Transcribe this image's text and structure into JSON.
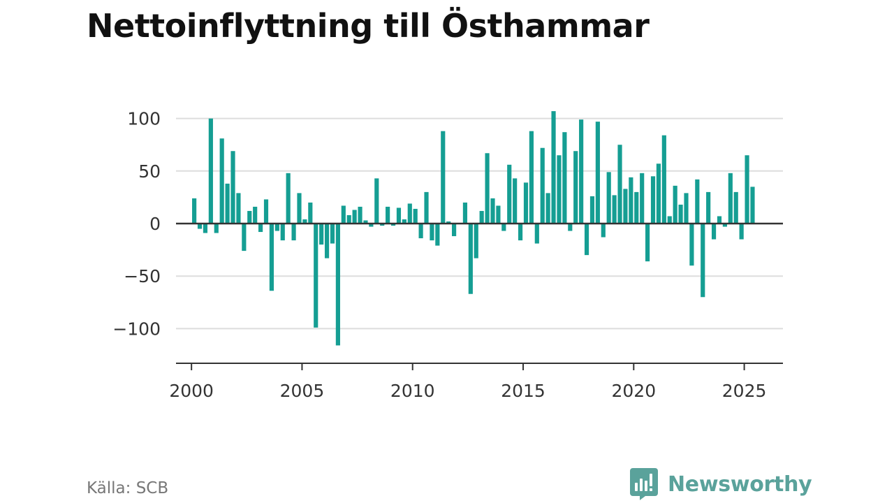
{
  "title": "Nettoinflyttning till Östhammar",
  "source": "Källa: SCB",
  "brand": {
    "name": "Newsworthy",
    "color": "#5aa29b",
    "icon": "bar-chart-speech-bubble-icon"
  },
  "chart_data": {
    "type": "bar",
    "bar_color": "#159e93",
    "xlim": [
      1999.3,
      2026.75
    ],
    "ylim": [
      -133,
      133
    ],
    "x_ticks": [
      2000,
      2005,
      2010,
      2015,
      2020,
      2025
    ],
    "x_tick_labels": [
      "2000",
      "2005",
      "2010",
      "2015",
      "2020",
      "2025"
    ],
    "y_ticks": [
      100,
      50,
      0,
      -50,
      -100
    ],
    "y_tick_labels": [
      "100",
      "50",
      "0",
      "−50",
      "−100"
    ],
    "grid": "horizontal",
    "legend": "none",
    "x": [
      2000.125,
      2000.375,
      2000.625,
      2000.875,
      2001.125,
      2001.375,
      2001.625,
      2001.875,
      2002.125,
      2002.375,
      2002.625,
      2002.875,
      2003.125,
      2003.375,
      2003.625,
      2003.875,
      2004.125,
      2004.375,
      2004.625,
      2004.875,
      2005.125,
      2005.375,
      2005.625,
      2005.875,
      2006.125,
      2006.375,
      2006.625,
      2006.875,
      2007.125,
      2007.375,
      2007.625,
      2007.875,
      2008.125,
      2008.375,
      2008.625,
      2008.875,
      2009.125,
      2009.375,
      2009.625,
      2009.875,
      2010.125,
      2010.375,
      2010.625,
      2010.875,
      2011.125,
      2011.375,
      2011.625,
      2011.875,
      2012.125,
      2012.375,
      2012.625,
      2012.875,
      2013.125,
      2013.375,
      2013.625,
      2013.875,
      2014.125,
      2014.375,
      2014.625,
      2014.875,
      2015.125,
      2015.375,
      2015.625,
      2015.875,
      2016.125,
      2016.375,
      2016.625,
      2016.875,
      2017.125,
      2017.375,
      2017.625,
      2017.875,
      2018.125,
      2018.375,
      2018.625,
      2018.875,
      2019.125,
      2019.375,
      2019.625,
      2019.875,
      2020.125,
      2020.375,
      2020.625,
      2020.875,
      2021.125,
      2021.375,
      2021.625,
      2021.875,
      2022.125,
      2022.375,
      2022.625,
      2022.875,
      2023.125,
      2023.375,
      2023.625,
      2023.875,
      2024.125,
      2024.375,
      2024.625,
      2024.875,
      2025.125,
      2025.375
    ],
    "values": [
      24,
      -5,
      -9,
      100,
      -9,
      81,
      38,
      69,
      29,
      -26,
      12,
      16,
      -8,
      23,
      -64,
      -7,
      -16,
      48,
      -16,
      29,
      4,
      20,
      -99,
      -20,
      -33,
      -19,
      -116,
      17,
      8,
      13,
      16,
      3,
      -3,
      43,
      -2,
      16,
      -2,
      15,
      4,
      19,
      14,
      -14,
      30,
      -16,
      -21,
      88,
      2,
      -12,
      0,
      20,
      -67,
      -33,
      12,
      67,
      24,
      17,
      -7,
      56,
      43,
      -16,
      39,
      88,
      -19,
      72,
      29,
      107,
      65,
      87,
      -7,
      69,
      99,
      -30,
      26,
      97,
      -13,
      49,
      27,
      75,
      33,
      44,
      30,
      48,
      -36,
      45,
      57,
      84,
      7,
      36,
      18,
      29,
      -40,
      42,
      -70,
      30,
      -15,
      7,
      -3,
      48,
      30,
      -15,
      65,
      35
    ]
  }
}
